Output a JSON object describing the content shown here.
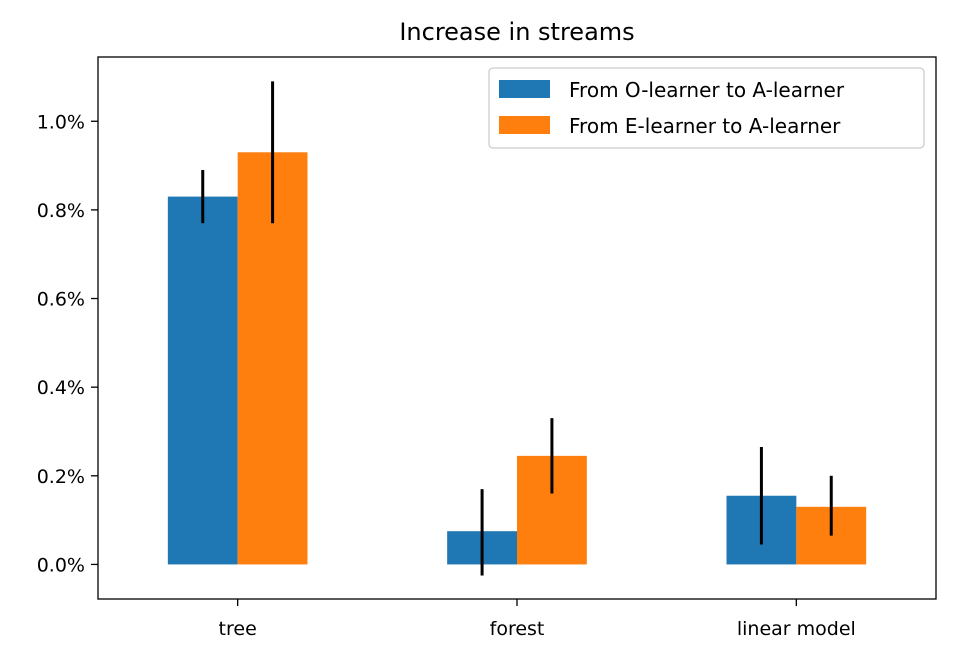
{
  "chart_data": {
    "type": "bar",
    "title": "Increase in streams",
    "xlabel": "",
    "ylabel": "",
    "categories": [
      "tree",
      "forest",
      "linear model"
    ],
    "series": [
      {
        "name": "From O-learner to A-learner",
        "color": "#1f77b4",
        "values": [
          0.0083,
          0.00075,
          0.00155
        ],
        "err_low": [
          0.0077,
          -0.00025,
          0.00045
        ],
        "err_high": [
          0.0089,
          0.0017,
          0.00265
        ]
      },
      {
        "name": "From E-learner to A-learner",
        "color": "#ff7f0e",
        "values": [
          0.0093,
          0.00245,
          0.0013
        ],
        "err_low": [
          0.0077,
          0.0016,
          0.00065
        ],
        "err_high": [
          0.0109,
          0.0033,
          0.002
        ]
      }
    ],
    "ylim": [
      -0.00078,
      0.01145
    ],
    "yticks": [
      0,
      0.002,
      0.004,
      0.006,
      0.008,
      0.01
    ],
    "ytick_labels": [
      "0.0%",
      "0.2%",
      "0.4%",
      "0.6%",
      "0.8%",
      "1.0%"
    ],
    "grid": false,
    "legend": "top-right",
    "errorbar_color": "#000000"
  }
}
